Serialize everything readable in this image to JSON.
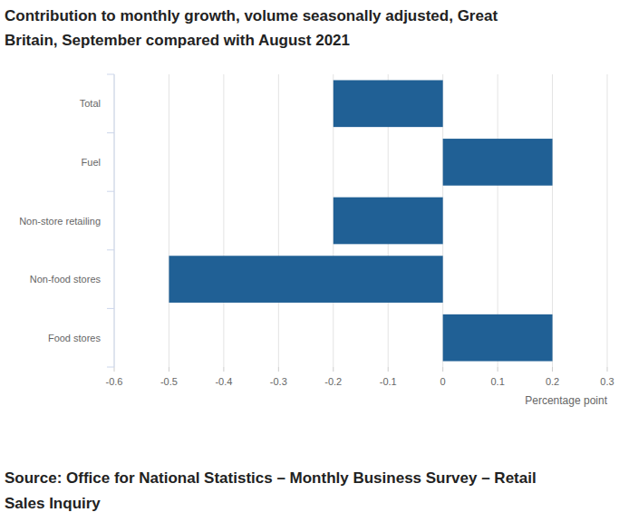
{
  "chart_data": {
    "type": "bar",
    "orientation": "horizontal",
    "title": "Contribution to monthly growth, volume seasonally adjusted, Great Britain, September compared with August 2021",
    "source": "Source: Office for National Statistics – Monthly Business Survey – Retail Sales Inquiry",
    "x_label": "Percentage point",
    "categories": [
      "Total",
      "Fuel",
      "Non-store retailing",
      "Non-food stores",
      "Food stores"
    ],
    "values": [
      -0.2,
      0.2,
      -0.2,
      -0.5,
      0.2
    ],
    "color": "#206095",
    "xlim": [
      -0.6,
      0.3
    ],
    "xticks": [
      -0.6,
      -0.5,
      -0.4,
      -0.3,
      -0.2,
      -0.1,
      0,
      0.1,
      0.2,
      0.3
    ],
    "grid": true
  }
}
